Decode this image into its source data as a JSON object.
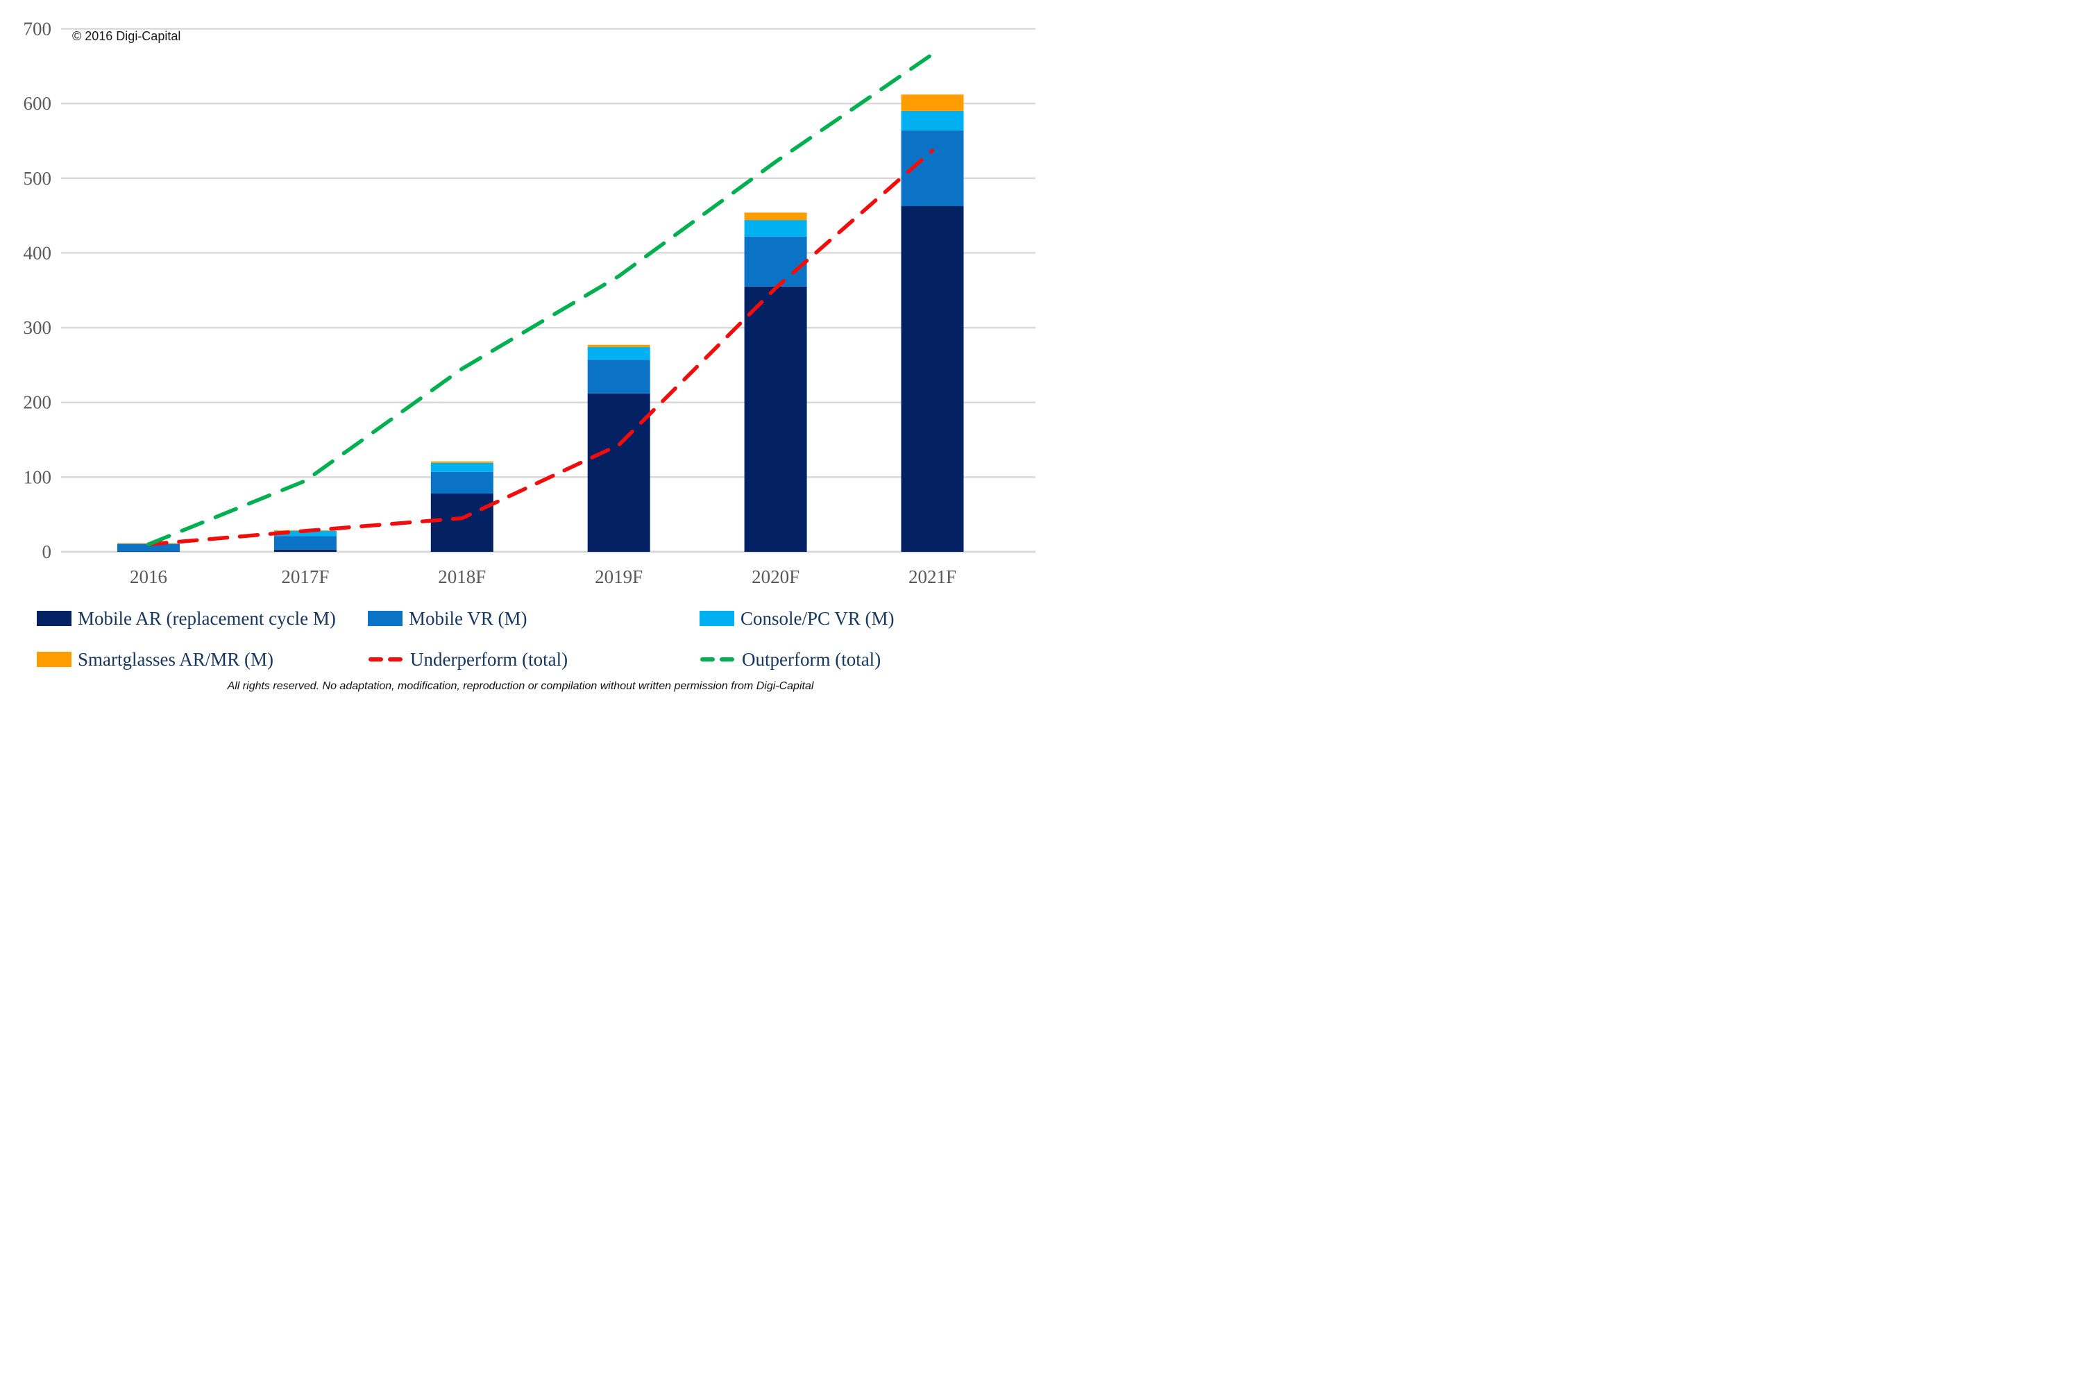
{
  "page": {
    "copyright": "© 2016 Digi-Capital",
    "disclaimer": "All rights reserved. No adaptation, modification, reproduction or compilation without written permission from Digi-Capital"
  },
  "colors": {
    "mobile_ar": "#032163",
    "mobile_vr": "#0B73C6",
    "console_pc_vr": "#00B0F0",
    "smartglasses": "#FF9C00",
    "underperform": "#F20D0D",
    "outperform": "#00B050",
    "gridline": "#D9D9D9",
    "axis_text": "#595959",
    "legend_text": "#17365D"
  },
  "chart_data": {
    "type": "combo: stacked bar + dashed lines",
    "title": "",
    "xlabel": "",
    "ylabel": "",
    "categories": [
      "2016",
      "2017F",
      "2018F",
      "2019F",
      "2020F",
      "2021F"
    ],
    "ylim": [
      0,
      700
    ],
    "yticks": [
      0,
      100,
      200,
      300,
      400,
      500,
      600,
      700
    ],
    "grid": "horizontal",
    "legend_position": "bottom",
    "stacked_bar_series": [
      {
        "name": "Mobile AR (replacement cycle M)",
        "color_key": "mobile_ar",
        "values": [
          0.5,
          3,
          78,
          212,
          355,
          463
        ]
      },
      {
        "name": "Mobile VR (M)",
        "color_key": "mobile_vr",
        "values": [
          10,
          18,
          29,
          45,
          67,
          101
        ]
      },
      {
        "name": "Console/PC VR (M)",
        "color_key": "console_pc_vr",
        "values": [
          0.5,
          7,
          12,
          17,
          22,
          26
        ]
      },
      {
        "name": "Smartglasses AR/MR (M)",
        "color_key": "smartglasses",
        "values": [
          0.7,
          1,
          2,
          3,
          10,
          22
        ]
      }
    ],
    "line_series": [
      {
        "name": "Underperform (total)",
        "color_key": "underperform",
        "style": "dashed",
        "values": [
          10,
          28,
          45,
          143,
          353,
          537
        ]
      },
      {
        "name": "Outperform (total)",
        "color_key": "outperform",
        "style": "dashed",
        "values": [
          10,
          95,
          245,
          369,
          522,
          666
        ]
      }
    ]
  },
  "legend": {
    "rows": [
      [
        {
          "label": "Mobile AR (replacement cycle M)",
          "marker": "box",
          "color_key": "mobile_ar"
        },
        {
          "label": "Mobile VR (M)",
          "marker": "box",
          "color_key": "mobile_vr"
        },
        {
          "label": "Console/PC VR (M)",
          "marker": "box",
          "color_key": "console_pc_vr"
        }
      ],
      [
        {
          "label": "Smartglasses AR/MR (M)",
          "marker": "box",
          "color_key": "smartglasses"
        },
        {
          "label": "Underperform (total)",
          "marker": "dash",
          "color_key": "underperform"
        },
        {
          "label": "Outperform (total)",
          "marker": "dash",
          "color_key": "outperform"
        }
      ]
    ]
  }
}
